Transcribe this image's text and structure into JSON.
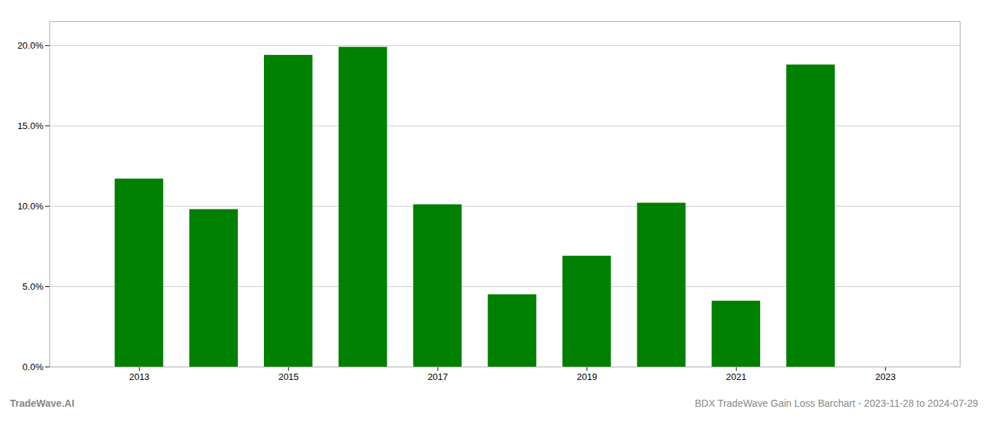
{
  "chart_data": {
    "type": "bar",
    "x": [
      2013,
      2014,
      2015,
      2016,
      2017,
      2018,
      2019,
      2020,
      2021,
      2022
    ],
    "values": [
      0.117,
      0.098,
      0.194,
      0.199,
      0.101,
      0.045,
      0.069,
      0.102,
      0.041,
      0.188
    ],
    "color": "#008000",
    "xlim": [
      2011.8,
      2024.0
    ],
    "xticks": [
      2013,
      2015,
      2017,
      2019,
      2021,
      2023
    ],
    "ylim": [
      0,
      0.215
    ],
    "yticks": [
      {
        "value": 0.0,
        "label": "0.0%"
      },
      {
        "value": 0.05,
        "label": "5.0%"
      },
      {
        "value": 0.1,
        "label": "10.0%"
      },
      {
        "value": 0.15,
        "label": "15.0%"
      },
      {
        "value": 0.2,
        "label": "20.0%"
      }
    ],
    "grid": true,
    "annotations": [
      "TradeWave.AI",
      "BDX TradeWave Gain Loss Barchart - 2023-11-28 to 2024-07-29"
    ]
  }
}
